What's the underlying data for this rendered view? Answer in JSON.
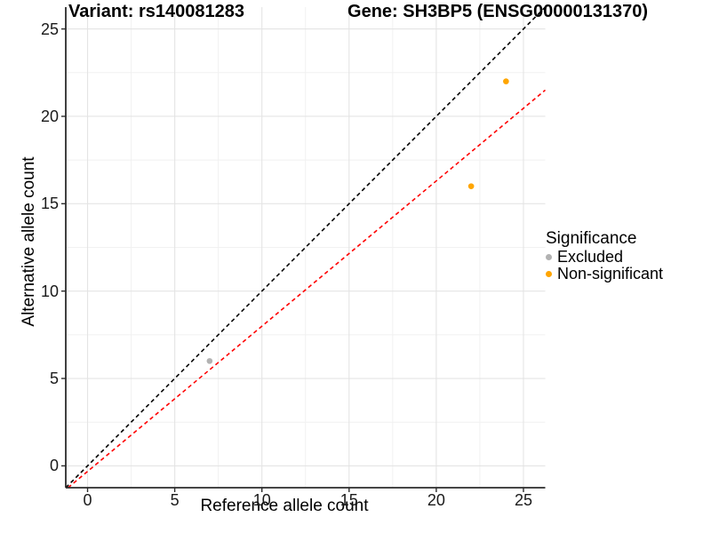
{
  "chart_data": {
    "type": "scatter",
    "titles": {
      "left": "Variant: rs140081283",
      "right": "Gene: SH3BP5 (ENSG00000131370)"
    },
    "xlabel": "Reference allele count",
    "ylabel": "Alternative allele count",
    "xlim": [
      -1.25,
      26.25
    ],
    "ylim": [
      -1.25,
      26.25
    ],
    "x_ticks": [
      0,
      5,
      10,
      15,
      20,
      25
    ],
    "y_ticks": [
      0,
      5,
      10,
      15,
      20,
      25
    ],
    "x_minor_ticks": [
      2.5,
      7.5,
      12.5,
      17.5,
      22.5
    ],
    "y_minor_ticks": [
      2.5,
      7.5,
      12.5,
      17.5,
      22.5
    ],
    "grid": "major and minor gridlines, light grey on white panel",
    "legend": {
      "position": "right",
      "title": "Significance",
      "items": [
        {
          "label": "Excluded",
          "color": "#b2b2b2"
        },
        {
          "label": "Non-significant",
          "color": "#ffa500"
        }
      ]
    },
    "series": [
      {
        "name": "Excluded",
        "color": "#b2b2b2",
        "points": [
          {
            "x": 7,
            "y": 6
          }
        ]
      },
      {
        "name": "Non-significant",
        "color": "#ffa500",
        "points": [
          {
            "x": 22,
            "y": 16
          },
          {
            "x": 24,
            "y": 22
          }
        ]
      }
    ],
    "lines": [
      {
        "name": "identity",
        "style": "dashed",
        "color": "#000000",
        "x1": -1.25,
        "y1": -1.25,
        "x2": 26.25,
        "y2": 26.25
      },
      {
        "name": "expected-ratio-fit",
        "style": "dashed",
        "color": "#ff0000",
        "x1": -1.12,
        "y1": -1.25,
        "x2": 26.25,
        "y2": 21.5
      }
    ],
    "colors": {
      "axis_line": "#2b2b2b",
      "major_grid": "#e4e4e4",
      "minor_grid": "#f1f1f1",
      "text": "#000000"
    }
  }
}
